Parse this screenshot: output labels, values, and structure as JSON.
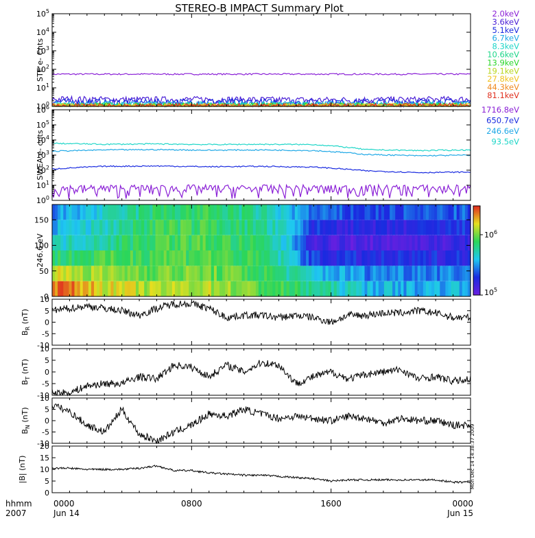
{
  "title": "STEREO-B IMPACT Summary Plot",
  "chart_data": [
    {
      "id": "ste",
      "type": "line",
      "ylabel": "STE e- Cnts",
      "yscale": "log",
      "ylim": [
        1,
        100000
      ],
      "yticks": [
        "10^0",
        "10^1",
        "10^2",
        "10^3",
        "10^4",
        "10^5"
      ],
      "xlim_hours": [
        0,
        24
      ],
      "legend_position": "right",
      "series": [
        {
          "name": "2.0keV",
          "color": "#8a1fd6",
          "values": [
            55,
            55,
            55,
            55,
            55,
            55
          ]
        },
        {
          "name": "3.6keV",
          "color": "#4a1fd6",
          "values": [
            2.5,
            2.3,
            2.4,
            2.2,
            2.3,
            2.4
          ]
        },
        {
          "name": "5.1keV",
          "color": "#1a2be0",
          "values": [
            1.8,
            1.7,
            1.8,
            1.7,
            1.8,
            1.7
          ]
        },
        {
          "name": "6.7keV",
          "color": "#1fa8e6",
          "values": [
            1.3,
            1.3,
            1.3,
            1.3,
            1.3,
            1.3
          ]
        },
        {
          "name": "8.3keV",
          "color": "#1fd6c8",
          "values": [
            1.2,
            1.2,
            1.2,
            1.2,
            1.2,
            1.2
          ]
        },
        {
          "name": "10.6keV",
          "color": "#1fd68a",
          "values": [
            1.1,
            1.1,
            1.1,
            1.1,
            1.1,
            1.1
          ]
        },
        {
          "name": "13.9keV",
          "color": "#2bd62b",
          "values": [
            1.05,
            1.05,
            1.05,
            1.05,
            1.05,
            1.05
          ]
        },
        {
          "name": "19.1keV",
          "color": "#b8d61f",
          "values": [
            1.0,
            1.0,
            1.0,
            1.0,
            1.0,
            1.0
          ]
        },
        {
          "name": "27.8keV",
          "color": "#f0c21f",
          "values": [
            1.0,
            1.0,
            1.0,
            1.0,
            1.0,
            1.0
          ]
        },
        {
          "name": "44.3keV",
          "color": "#f08a1f",
          "values": [
            1.0,
            1.0,
            1.0,
            1.0,
            1.0,
            1.0
          ]
        },
        {
          "name": "81.1keV",
          "color": "#e0301f",
          "values": [
            1.0,
            1.0,
            1.0,
            1.0,
            1.0,
            1.0
          ]
        }
      ]
    },
    {
      "id": "swea",
      "type": "line",
      "ylabel": "SWEA e- cnts",
      "yscale": "log",
      "ylim": [
        1,
        1000000
      ],
      "yticks": [
        "10^0",
        "10^1",
        "10^2",
        "10^3",
        "10^4",
        "10^5",
        "10^6"
      ],
      "xlim_hours": [
        0,
        24
      ],
      "legend_position": "right",
      "series": [
        {
          "name": "1716.8eV",
          "color": "#8a1fd6",
          "values": [
            3,
            3,
            3,
            3,
            3,
            3,
            3,
            3,
            3
          ]
        },
        {
          "name": "650.7eV",
          "color": "#1a2be0",
          "values": [
            120,
            180,
            190,
            170,
            180,
            160,
            90,
            70,
            75
          ]
        },
        {
          "name": "246.6eV",
          "color": "#1fa8e6",
          "values": [
            1800,
            2200,
            2300,
            2100,
            2200,
            2000,
            1100,
            900,
            1000
          ]
        },
        {
          "name": "93.5eV",
          "color": "#1fd6c8",
          "values": [
            6000,
            5200,
            5500,
            5000,
            5200,
            5000,
            2300,
            2000,
            2200
          ]
        }
      ]
    },
    {
      "id": "pad",
      "type": "heatmap",
      "ylabel": "246.6 eV",
      "ylim": [
        0,
        180
      ],
      "yticks": [
        "0",
        "50",
        "100",
        "150"
      ],
      "xlim_hours": [
        0,
        24
      ],
      "colorbar": {
        "scale": "log",
        "ticks": [
          "10^5",
          "10^6"
        ],
        "range": [
          100000,
          3000000
        ]
      },
      "rows_deg": [
        15,
        45,
        75,
        105,
        135,
        165
      ],
      "values": [
        [
          2500000,
          1500000,
          1200000,
          1300000,
          900000,
          600000,
          400000,
          350000,
          400000
        ],
        [
          1400000,
          1100000,
          1000000,
          1000000,
          800000,
          400000,
          300000,
          300000,
          300000
        ],
        [
          700000,
          800000,
          900000,
          900000,
          700000,
          200000,
          180000,
          180000,
          200000
        ],
        [
          450000,
          600000,
          850000,
          850000,
          650000,
          150000,
          120000,
          130000,
          160000
        ],
        [
          350000,
          500000,
          800000,
          800000,
          600000,
          200000,
          160000,
          170000,
          200000
        ],
        [
          300000,
          450000,
          700000,
          750000,
          550000,
          250000,
          220000,
          230000,
          250000
        ]
      ]
    },
    {
      "id": "br",
      "type": "line",
      "ylabel": "BR (nT)",
      "ylim": [
        -10,
        10
      ],
      "yticks": [
        "-10",
        "-5",
        "0",
        "5",
        "10"
      ],
      "xlim_hours": [
        0,
        24
      ],
      "x_hours": [
        0,
        1,
        2,
        3,
        4,
        5,
        6,
        7,
        8,
        9,
        10,
        11,
        12,
        13,
        14,
        15,
        16,
        17,
        18,
        19,
        20,
        21,
        22,
        23,
        24
      ],
      "values": [
        5,
        6,
        7,
        6,
        5,
        3,
        6,
        8,
        8,
        6,
        2,
        3,
        3,
        2,
        3,
        2,
        0,
        3,
        3,
        4,
        4,
        5,
        4,
        2,
        2
      ]
    },
    {
      "id": "bt",
      "type": "line",
      "ylabel": "BT (nT)",
      "ylim": [
        -10,
        10
      ],
      "yticks": [
        "-10",
        "-5",
        "0",
        "5",
        "10"
      ],
      "xlim_hours": [
        0,
        24
      ],
      "x_hours": [
        0,
        1,
        2,
        3,
        4,
        5,
        6,
        7,
        8,
        9,
        10,
        11,
        12,
        13,
        14,
        15,
        16,
        17,
        18,
        19,
        20,
        21,
        22,
        23,
        24
      ],
      "values": [
        -9,
        -9,
        -6,
        -5,
        -5,
        -2,
        -3,
        3,
        2,
        -2,
        3,
        0,
        4,
        3,
        -5,
        -2,
        0,
        -3,
        -1,
        0,
        1,
        -3,
        -2,
        -4,
        -3
      ]
    },
    {
      "id": "bn",
      "type": "line",
      "ylabel": "BN (nT)",
      "ylim": [
        -10,
        10
      ],
      "yticks": [
        "-10",
        "-5",
        "0",
        "5",
        "10"
      ],
      "xlim_hours": [
        0,
        24
      ],
      "x_hours": [
        0,
        1,
        2,
        3,
        4,
        5,
        6,
        7,
        8,
        9,
        10,
        11,
        12,
        13,
        14,
        15,
        16,
        17,
        18,
        19,
        20,
        21,
        22,
        23,
        24
      ],
      "values": [
        7,
        4,
        -2,
        -5,
        5,
        -6,
        -9,
        -5,
        -2,
        3,
        2,
        5,
        3,
        1,
        2,
        1,
        0,
        2,
        1,
        -1,
        1,
        0,
        0,
        -2,
        -2
      ]
    },
    {
      "id": "bmag",
      "type": "line",
      "ylabel": "|B| (nT)",
      "ylim": [
        0,
        20
      ],
      "yticks": [
        "0",
        "5",
        "10",
        "15",
        "20"
      ],
      "xlim_hours": [
        0,
        24
      ],
      "x_hours": [
        0,
        1,
        2,
        3,
        4,
        5,
        6,
        7,
        8,
        9,
        10,
        11,
        12,
        13,
        14,
        15,
        16,
        17,
        18,
        19,
        20,
        21,
        22,
        23,
        24
      ],
      "values": [
        10.5,
        10.5,
        10,
        10,
        10,
        10.5,
        11.5,
        9.5,
        9.5,
        8.5,
        8,
        7.5,
        7.5,
        7,
        6.5,
        6,
        5,
        5.5,
        5.5,
        5.5,
        5.5,
        5.5,
        5.5,
        4.5,
        4.5
      ]
    }
  ],
  "x_axis": {
    "header_label": "hhmm",
    "year": "2007",
    "ticks": [
      {
        "hour": 0,
        "time": "0000",
        "date": "Jun 14"
      },
      {
        "hour": 8,
        "time": "0800",
        "date": ""
      },
      {
        "hour": 16,
        "time": "1600",
        "date": ""
      },
      {
        "hour": 24,
        "time": "0000",
        "date": "Jun 15"
      }
    ]
  },
  "timestamp": "Mon Dec 14 14:38:37 2009"
}
